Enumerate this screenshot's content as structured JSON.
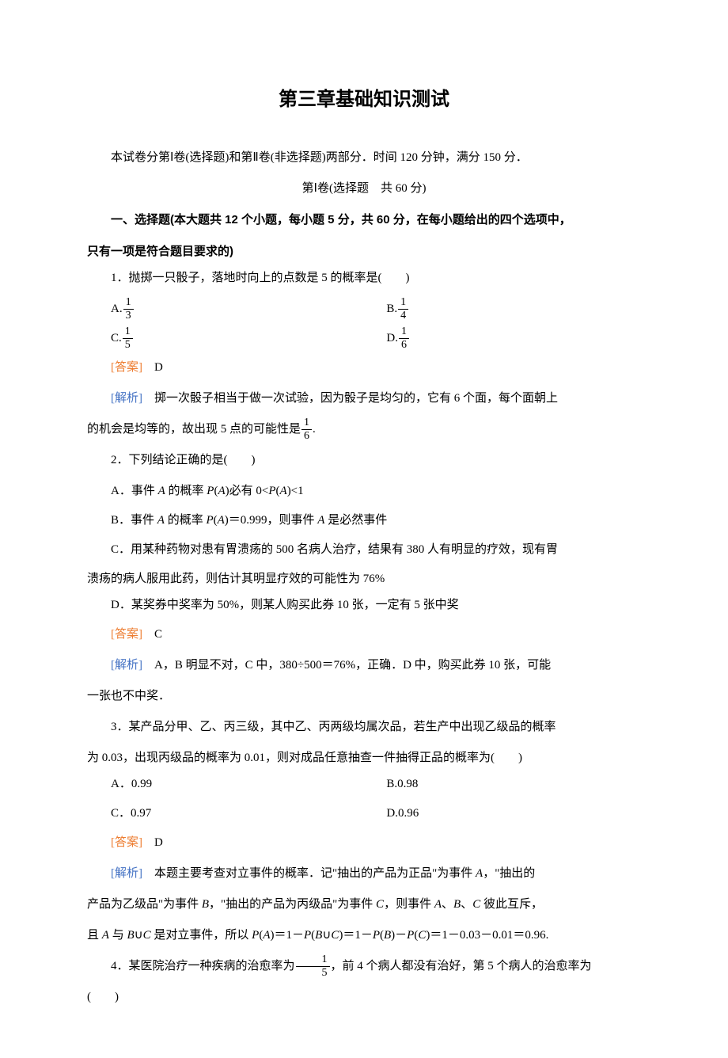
{
  "title": "第三章基础知识测试",
  "intro": "本试卷分第Ⅰ卷(选择题)和第Ⅱ卷(非选择题)两部分．时间 120 分钟，满分 150 分．",
  "section1_title": "第Ⅰ卷(选择题　共 60 分)",
  "section_heading_prefix": "一、选择题(本大题共 12 个小题，每小题 5 分，共 60 分，在每小题给出的四个选项中，",
  "section_heading_suffix": "只有一项是符合题目要求的)",
  "answer_label": "[答案]",
  "explain_label": "[解析]",
  "q1": {
    "stem": "1．抛掷一只骰子，落地时向上的点数是 5 的概率是(　　)",
    "optA_prefix": "A.",
    "optA_num": "1",
    "optA_den": "3",
    "optB_prefix": "B.",
    "optB_num": "1",
    "optB_den": "4",
    "optC_prefix": "C.",
    "optC_num": "1",
    "optC_den": "5",
    "optD_prefix": "D.",
    "optD_num": "1",
    "optD_den": "6",
    "answer": "D",
    "explain1": "掷一次骰子相当于做一次试验，因为骰子是均匀的，它有 6 个面，每个面朝上",
    "explain2_prefix": "的机会是均等的，故出现 5 点的可能性是",
    "explain2_num": "1",
    "explain2_den": "6",
    "explain2_suffix": "."
  },
  "q2": {
    "stem": "2．下列结论正确的是(　　)",
    "optA": "A．事件 A 的概率 P(A)必有 0<P(A)<1",
    "optB": "B．事件 A 的概率 P(A)＝0.999，则事件 A 是必然事件",
    "optC1": "C．用某种药物对患有胃溃疡的 500 名病人治疗，结果有 380 人有明显的疗效，现有胃",
    "optC2": "溃疡的病人服用此药，则估计其明显疗效的可能性为 76%",
    "optD": "D．某奖券中奖率为 50%，则某人购买此券 10 张，一定有 5 张中奖",
    "answer": "C",
    "explain1": "A，B 明显不对，C 中，380÷500＝76%，正确．D 中，购买此券 10 张，可能",
    "explain2": "一张也不中奖．"
  },
  "q3": {
    "stem1": "3．某产品分甲、乙、丙三级，其中乙、丙两级均属次品，若生产中出现乙级品的概率",
    "stem2": "为 0.03，出现丙级品的概率为 0.01，则对成品任意抽查一件抽得正品的概率为(　　)",
    "optA": "A．0.99",
    "optB": "B.0.98",
    "optC": "C．0.97",
    "optD": "D.0.96",
    "answer": "D",
    "explain1": "本题主要考查对立事件的概率．记\"抽出的产品为正品\"为事件 A，\"抽出的",
    "explain2": "产品为乙级品\"为事件 B，\"抽出的产品为丙级品\"为事件 C，则事件 A、B、C 彼此互斥，",
    "explain3": "且 A 与 B∪C 是对立事件，所以 P(A)＝1－P(B∪C)＝1－P(B)－P(C)＝1－0.03－0.01＝0.96."
  },
  "q4": {
    "stem_prefix": "4．某医院治疗一种疾病的治愈率为",
    "stem_num": "1",
    "stem_den": "5",
    "stem_suffix": "，前 4 个病人都没有治好，第 5 个病人的治愈率为",
    "stem2": "(　　)"
  },
  "colors": {
    "answer_color": "#ed7d31",
    "explain_color": "#4472c4",
    "text_color": "#000000",
    "background": "#ffffff"
  },
  "typography": {
    "title_fontsize": 24,
    "body_fontsize": 15,
    "line_height": 2.2
  }
}
